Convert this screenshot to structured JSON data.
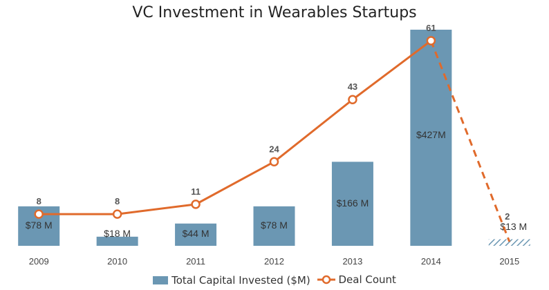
{
  "chart_data": {
    "type": "bar",
    "title": "VC Investment in Wearables Startups",
    "categories": [
      "2009",
      "2010",
      "2011",
      "2012",
      "2013",
      "2014",
      "2015"
    ],
    "series": [
      {
        "name": "Total Capital Invested ($M)",
        "type": "bar",
        "values": [
          78,
          18,
          44,
          78,
          166,
          427,
          13
        ],
        "labels": [
          "$78 M",
          "$18 M",
          "$44 M",
          "$78 M",
          "$166 M",
          "$427M",
          "$13 M"
        ],
        "color": "#6b97b3",
        "hatched_last": true
      },
      {
        "name": "Deal Count",
        "type": "line",
        "values": [
          8,
          8,
          11,
          24,
          43,
          61,
          2
        ],
        "labels": [
          "8",
          "8",
          "11",
          "24",
          "43",
          "61",
          "2"
        ],
        "color": "#e06a2b",
        "dashed_last_segment": true
      }
    ],
    "bar_ylim": [
      0,
      427
    ],
    "line_ylim": [
      0,
      65
    ],
    "grid": false,
    "legend_position": "bottom"
  }
}
